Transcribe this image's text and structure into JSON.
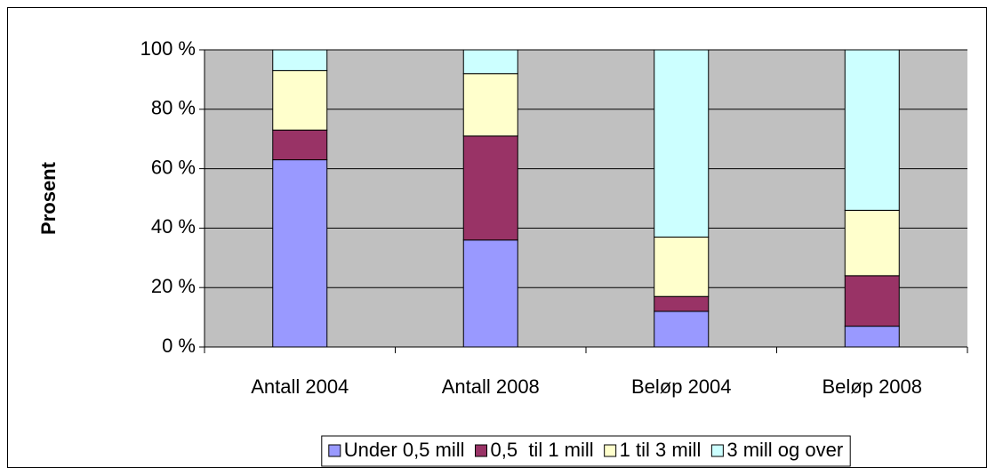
{
  "chart_data": {
    "type": "stacked-bar",
    "y_label": "Prosent",
    "categories": [
      "Antall 2004",
      "Antall 2008",
      "Beløp 2004",
      "Beløp 2008"
    ],
    "series": [
      {
        "name": "Under 0,5 mill",
        "color": "#9999ff",
        "values": [
          63,
          36,
          12,
          7
        ]
      },
      {
        "name": "0,5  til 1 mill",
        "color": "#993366",
        "values": [
          10,
          35,
          5,
          17
        ]
      },
      {
        "name": "1 til 3 mill",
        "color": "#ffffcc",
        "values": [
          20,
          21,
          20,
          22
        ]
      },
      {
        "name": "3 mill og over",
        "color": "#ccffff",
        "values": [
          7,
          8,
          63,
          54
        ]
      }
    ],
    "ylim": [
      0,
      100
    ],
    "yticks": [
      {
        "value": 0,
        "label": "0 %"
      },
      {
        "value": 20,
        "label": "20 %"
      },
      {
        "value": 40,
        "label": "40 %"
      },
      {
        "value": 60,
        "label": "60 %"
      },
      {
        "value": 80,
        "label": "80 %"
      },
      {
        "value": 100,
        "label": "100 %"
      }
    ],
    "plot_background": "#c0c0c0",
    "legend": "bottom"
  }
}
